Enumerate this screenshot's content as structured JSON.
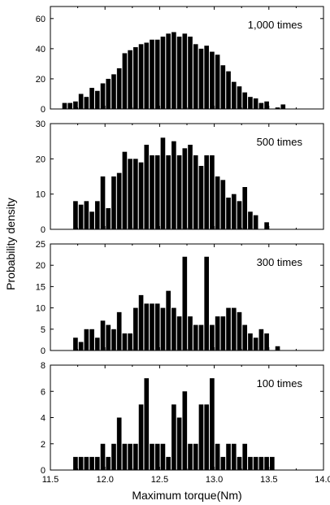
{
  "figure": {
    "ylabel": "Probability density",
    "xlabel": "Maximum torque(Nm)"
  },
  "chart_data": [
    {
      "type": "bar",
      "label": "1,000 times",
      "xlim": [
        11.5,
        14.0
      ],
      "ylim": [
        0,
        68
      ],
      "yticks": [
        0,
        20,
        40,
        60
      ],
      "xticks": [],
      "x": [
        11.63,
        11.68,
        11.73,
        11.78,
        11.83,
        11.88,
        11.93,
        11.98,
        12.03,
        12.08,
        12.13,
        12.18,
        12.23,
        12.28,
        12.33,
        12.38,
        12.43,
        12.48,
        12.53,
        12.58,
        12.63,
        12.68,
        12.73,
        12.78,
        12.83,
        12.88,
        12.93,
        12.98,
        13.03,
        13.08,
        13.13,
        13.18,
        13.23,
        13.28,
        13.33,
        13.38,
        13.43,
        13.48,
        13.58,
        13.63
      ],
      "values": [
        4,
        4,
        5,
        10,
        8,
        14,
        12,
        17,
        20,
        23,
        27,
        37,
        39,
        41,
        43,
        44,
        46,
        46,
        48,
        50,
        51,
        48,
        50,
        48,
        43,
        40,
        42,
        38,
        36,
        29,
        25,
        18,
        15,
        11,
        8,
        7,
        4,
        5,
        1,
        3
      ]
    },
    {
      "type": "bar",
      "label": "500 times",
      "xlim": [
        11.5,
        14.0
      ],
      "ylim": [
        0,
        30
      ],
      "yticks": [
        0,
        10,
        20,
        30
      ],
      "xticks": [],
      "x": [
        11.73,
        11.78,
        11.83,
        11.88,
        11.93,
        11.98,
        12.03,
        12.08,
        12.13,
        12.18,
        12.23,
        12.28,
        12.33,
        12.38,
        12.43,
        12.48,
        12.53,
        12.58,
        12.63,
        12.68,
        12.73,
        12.78,
        12.83,
        12.88,
        12.93,
        12.98,
        13.03,
        13.08,
        13.13,
        13.18,
        13.23,
        13.28,
        13.33,
        13.38,
        13.48
      ],
      "values": [
        8,
        7,
        8,
        5,
        8,
        15,
        6,
        15,
        16,
        22,
        20,
        20,
        19,
        24,
        21,
        21,
        26,
        21,
        25,
        21,
        23,
        24,
        21,
        18,
        21,
        21,
        15,
        14,
        9,
        10,
        8,
        12,
        5,
        4,
        2
      ]
    },
    {
      "type": "bar",
      "label": "300 times",
      "xlim": [
        11.5,
        14.0
      ],
      "ylim": [
        0,
        25
      ],
      "yticks": [
        0,
        5,
        10,
        15,
        20,
        25
      ],
      "xticks": [],
      "x": [
        11.73,
        11.78,
        11.83,
        11.88,
        11.93,
        11.98,
        12.03,
        12.08,
        12.13,
        12.18,
        12.23,
        12.28,
        12.33,
        12.38,
        12.43,
        12.48,
        12.53,
        12.58,
        12.63,
        12.68,
        12.73,
        12.78,
        12.83,
        12.88,
        12.93,
        12.98,
        13.03,
        13.08,
        13.13,
        13.18,
        13.23,
        13.28,
        13.33,
        13.38,
        13.43,
        13.48,
        13.58
      ],
      "values": [
        3,
        2,
        5,
        5,
        3,
        7,
        6,
        5,
        9,
        4,
        4,
        10,
        13,
        11,
        11,
        11,
        10,
        14,
        10,
        8,
        22,
        8,
        6,
        6,
        22,
        6,
        8,
        8,
        10,
        10,
        9,
        6,
        4,
        3,
        5,
        4,
        1
      ]
    },
    {
      "type": "bar",
      "label": "100 times",
      "xlim": [
        11.5,
        14.0
      ],
      "ylim": [
        0,
        8
      ],
      "yticks": [
        0,
        2,
        4,
        6,
        8
      ],
      "xticks": [
        11.5,
        12.0,
        12.5,
        13.0,
        13.5,
        14.0
      ],
      "x": [
        11.73,
        11.78,
        11.83,
        11.88,
        11.93,
        11.98,
        12.03,
        12.08,
        12.13,
        12.18,
        12.23,
        12.28,
        12.33,
        12.38,
        12.43,
        12.48,
        12.53,
        12.58,
        12.63,
        12.68,
        12.73,
        12.78,
        12.83,
        12.88,
        12.93,
        12.98,
        13.03,
        13.08,
        13.13,
        13.18,
        13.23,
        13.28,
        13.33,
        13.38,
        13.43,
        13.48,
        13.53
      ],
      "values": [
        1,
        1,
        1,
        1,
        1,
        2,
        1,
        2,
        4,
        2,
        2,
        2,
        5,
        7,
        2,
        2,
        2,
        1,
        5,
        4,
        6,
        2,
        2,
        5,
        5,
        7,
        2,
        1,
        2,
        2,
        1,
        2,
        1,
        1,
        1,
        1,
        1
      ]
    }
  ]
}
